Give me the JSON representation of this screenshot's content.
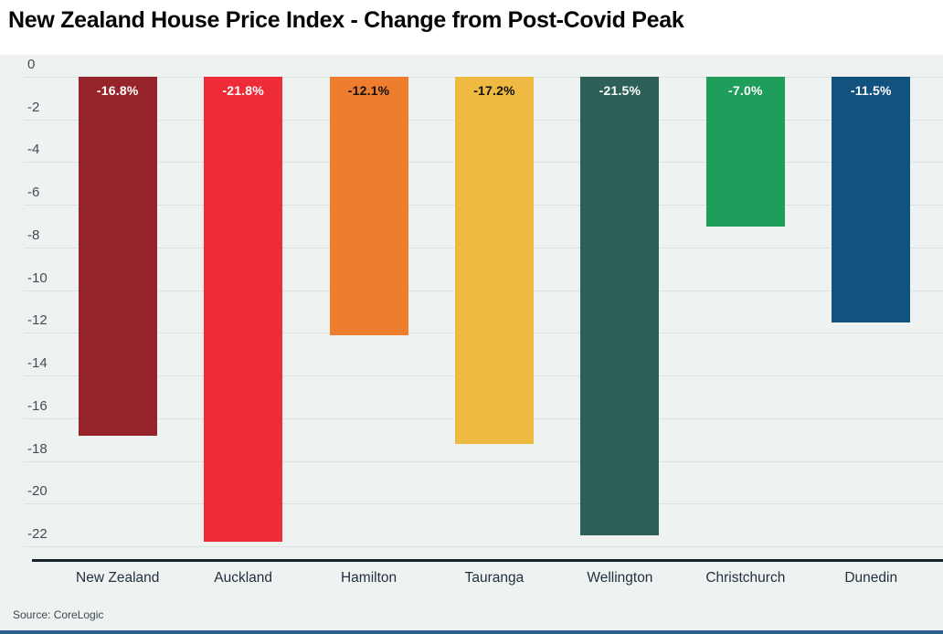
{
  "title": "New Zealand House Price Index - Change from Post-Covid Peak",
  "source": "Source: CoreLogic",
  "chart_data": {
    "type": "bar",
    "title": "New Zealand House Price Index - Change from Post-Covid Peak",
    "categories": [
      "New Zealand",
      "Auckland",
      "Hamilton",
      "Tauranga",
      "Wellington",
      "Christchurch",
      "Dunedin"
    ],
    "values": [
      -16.8,
      -21.8,
      -12.1,
      -17.2,
      -21.5,
      -7.0,
      -11.5
    ],
    "data_labels": [
      "-16.8%",
      "-21.8%",
      "-12.1%",
      "-17.2%",
      "-21.5%",
      "-7.0%",
      "-11.5%"
    ],
    "bar_colors": [
      "#97242B",
      "#EE2C38",
      "#EF7D2E",
      "#EFBA41",
      "#2D6158",
      "#1F9E5B",
      "#11527F"
    ],
    "data_label_colors": [
      "#ffffff",
      "#ffffff",
      "#101010",
      "#101010",
      "#ffffff",
      "#ffffff",
      "#ffffff"
    ],
    "xlabel": "",
    "ylabel": "",
    "ylim": [
      -22,
      0
    ],
    "yticks": [
      0,
      -2,
      -4,
      -6,
      -8,
      -10,
      -12,
      -14,
      -16,
      -18,
      -20,
      -22
    ],
    "grid": true,
    "legend": "none",
    "plot_background": "#eef3f2",
    "gridline_color": "#dbe3e1",
    "tick_label_color": "#414c56",
    "axis_line_color": "#16232e",
    "category_label_color": "#22313f",
    "bottom_accent_color": "#2e5f8e"
  }
}
